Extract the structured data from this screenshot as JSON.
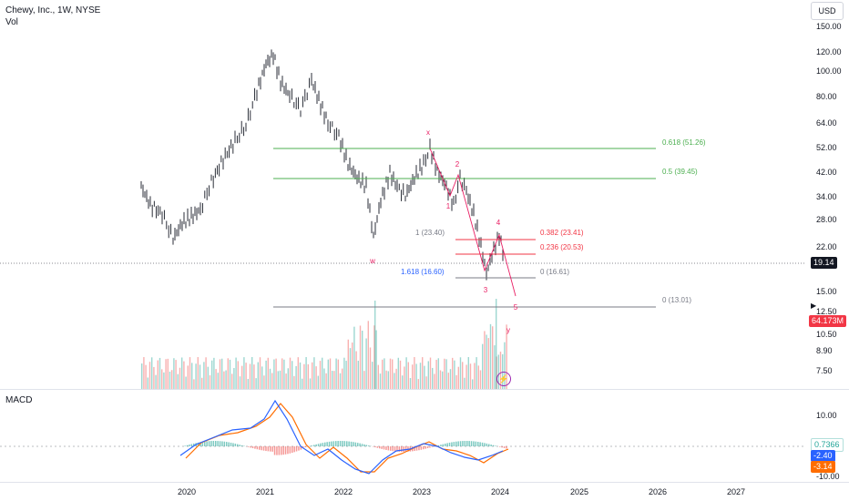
{
  "header": {
    "symbol_title": "Chewy, Inc., 1W, NYSE",
    "volume_label": "Vol",
    "currency": "USD"
  },
  "price_axis": {
    "ticks": [
      "150.00",
      "120.00",
      "100.00",
      "80.00",
      "64.00",
      "52.00",
      "42.00",
      "34.00",
      "28.00",
      "22.00",
      "15.00",
      "12.50",
      "10.50",
      "8.90",
      "7.50"
    ],
    "current_price": "19.14",
    "volume_tag": "64.173M"
  },
  "macd": {
    "label": "MACD",
    "ticks": [
      "10.00",
      "-10.00"
    ],
    "histogram_tag": "0.7366",
    "macd_tag": "-2.40",
    "signal_tag": "-3.14"
  },
  "time_axis": {
    "ticks": [
      "2020",
      "2021",
      "2022",
      "2023",
      "2024",
      "2025",
      "2026",
      "2027"
    ]
  },
  "fib_levels": [
    {
      "label": "0.618 (51.26)",
      "color": "#4caf50"
    },
    {
      "label": "0.5 (39.45)",
      "color": "#4caf50"
    },
    {
      "label": "0.382 (23.41)",
      "color": "#f23645"
    },
    {
      "label": "0.236 (20.53)",
      "color": "#f23645"
    },
    {
      "label": "0 (16.61)",
      "color": "#787b86"
    },
    {
      "label": "1 (23.40)",
      "color": "#787b86"
    },
    {
      "label": "1.618 (16.60)",
      "color": "#2962ff"
    },
    {
      "label": "0 (13.01)",
      "color": "#787b86"
    }
  ],
  "wave_labels": [
    "x",
    "w",
    "y",
    "1",
    "2",
    "3",
    "4",
    "5"
  ],
  "colors": {
    "up": "#26a69a",
    "down": "#ef5350",
    "macd": "#2962ff",
    "signal": "#ff6d00",
    "wave": "#e91e63",
    "price_tag": "#131722",
    "volume_tag": "#f23645"
  }
}
